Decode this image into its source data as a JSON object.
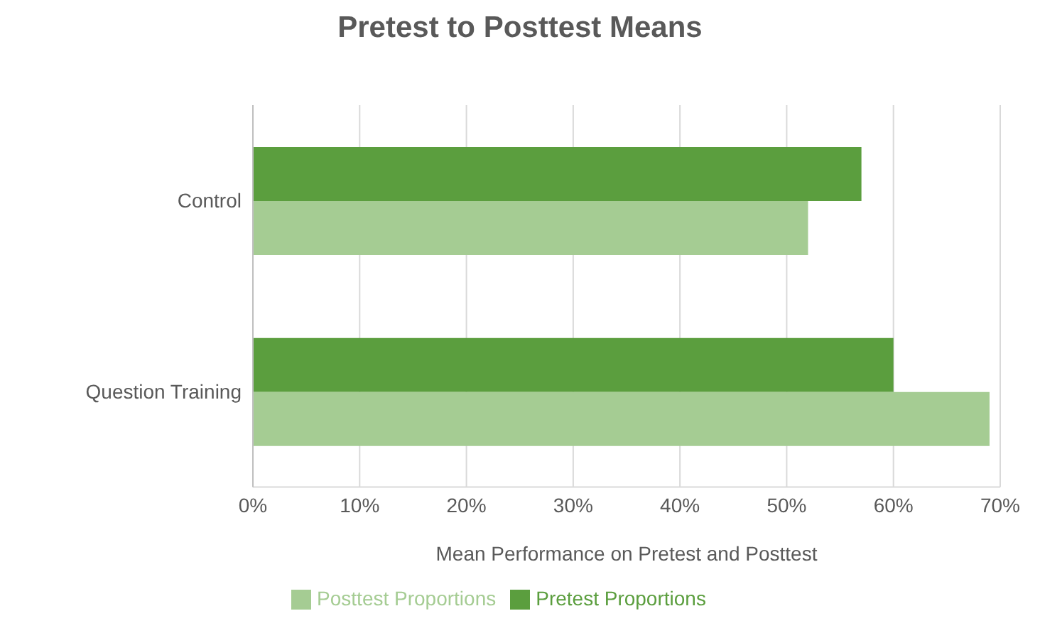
{
  "chart_data": {
    "type": "bar",
    "orientation": "horizontal",
    "title": "Pretest to Posttest Means",
    "xlabel": "Mean Performance on Pretest and Posttest",
    "categories": [
      "Control",
      "Question Training"
    ],
    "series": [
      {
        "name": "Pretest Proportions",
        "color": "#5b9e3e",
        "values": [
          57,
          60
        ]
      },
      {
        "name": "Posttest Proportions",
        "color": "#a5cc93",
        "values": [
          52,
          69
        ]
      }
    ],
    "xlim": [
      0,
      70
    ],
    "xticks": [
      {
        "value": 0,
        "label": "0%"
      },
      {
        "value": 10,
        "label": "10%"
      },
      {
        "value": 20,
        "label": "20%"
      },
      {
        "value": 30,
        "label": "30%"
      },
      {
        "value": 40,
        "label": "40%"
      },
      {
        "value": 50,
        "label": "50%"
      },
      {
        "value": 60,
        "label": "60%"
      },
      {
        "value": 70,
        "label": "70%"
      }
    ],
    "grid": "x",
    "legend": "bottom"
  }
}
